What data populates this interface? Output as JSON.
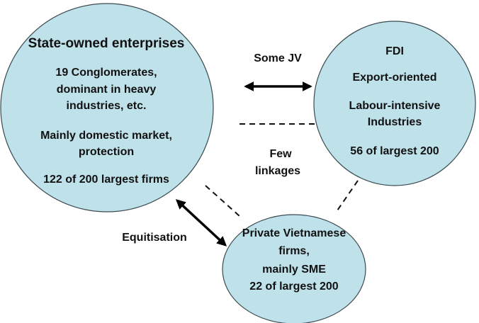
{
  "nodes": [
    {
      "title": "State-owned enterprises",
      "lines": [
        "19 Conglomerates,",
        "dominant in heavy",
        "industries, etc.",
        "Mainly domestic market,",
        "protection",
        "122 of 200 largest firms"
      ]
    },
    {
      "title": "FDI",
      "lines": [
        "Export-oriented",
        "Labour-intensive",
        "Industries",
        "56 of largest 200"
      ]
    },
    {
      "lines": [
        "Private Vietnamese",
        "firms,",
        "mainly SME",
        "22 of largest 200"
      ]
    }
  ],
  "edges": [
    {
      "label": [
        "Some JV"
      ]
    },
    {
      "label": [
        "Few",
        "linkages"
      ]
    },
    {
      "label": [
        "Equitisation"
      ]
    }
  ]
}
